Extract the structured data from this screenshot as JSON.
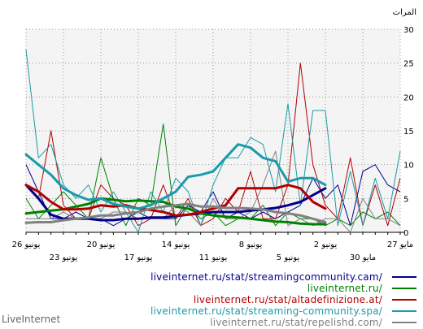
{
  "chart_data": {
    "type": "line",
    "ylabel": "المرات",
    "ylim": [
      0,
      30
    ],
    "yticks": [
      0,
      5,
      10,
      15,
      20,
      25,
      30
    ],
    "grid": true,
    "legend_position": "bottom-right",
    "x": [
      "27 مايو",
      "28 مايو",
      "29 مايو",
      "30 مايو",
      "31 مايو",
      "1 يونيو",
      "2 يونيو",
      "3 يونيو",
      "4 يونيو",
      "5 يونيو",
      "6 يونيو",
      "7 يونيو",
      "8 يونيو",
      "9 يونيو",
      "10 يونيو",
      "11 يونيو",
      "12 يونيو",
      "13 يونيو",
      "14 يونيو",
      "15 يونيو",
      "16 يونيو",
      "17 يونيو",
      "18 يونيو",
      "19 يونيو",
      "20 يونيو",
      "21 يونيو",
      "22 يونيو",
      "23 يونيو",
      "24 يونيو",
      "25 يونيو",
      "26 يونيو"
    ],
    "xtick_labels_upper": [
      {
        "index": 0,
        "label": "27 مايو"
      },
      {
        "index": 6,
        "label": "2 يونيو"
      },
      {
        "index": 12,
        "label": "8 يونيو"
      },
      {
        "index": 18,
        "label": "14 يونيو"
      },
      {
        "index": 24,
        "label": "20 يونيو"
      },
      {
        "index": 30,
        "label": "26 يونيو"
      }
    ],
    "xtick_labels_lower": [
      {
        "index": 3,
        "label": "30 مايو"
      },
      {
        "index": 9,
        "label": "5 يونيو"
      },
      {
        "index": 15,
        "label": "11 يونيو"
      },
      {
        "index": 21,
        "label": "17 يونيو"
      },
      {
        "index": 27,
        "label": "23 يونيو"
      }
    ],
    "series": [
      {
        "name": "liveinternet.ru/stat/streamingcommunity.cam/",
        "color": "#00008b",
        "values": [
          6,
          7,
          10,
          9,
          1,
          7,
          5,
          8,
          4,
          3,
          2,
          3,
          2,
          3,
          2,
          6,
          3,
          4,
          2,
          2,
          2,
          3,
          2,
          1,
          2,
          2,
          3,
          2,
          2,
          6,
          10
        ],
        "trend": [
          null,
          null,
          null,
          null,
          null,
          null,
          6.5,
          5.5,
          4.5,
          4,
          3.6,
          3.4,
          3.2,
          3,
          3,
          3,
          2.8,
          2.6,
          2.4,
          2.2,
          2.2,
          2,
          2,
          1.8,
          1.8,
          2,
          2,
          2,
          2.6,
          5,
          7
        ]
      },
      {
        "name": "liveinternet.ru/",
        "color": "#008000",
        "values": [
          1,
          3,
          2,
          3,
          1,
          2,
          1,
          2,
          2,
          3,
          1,
          4,
          2,
          2,
          1,
          3,
          2,
          4,
          1,
          16,
          4,
          5,
          1,
          5,
          11,
          2,
          4,
          6,
          4,
          2,
          5
        ],
        "trend": [
          null,
          null,
          null,
          null,
          null,
          null,
          1.2,
          1.2,
          1.3,
          1.5,
          1.6,
          1.8,
          2,
          2.2,
          2.3,
          2.5,
          2.8,
          3.5,
          3.8,
          4.5,
          4.6,
          4.7,
          4.6,
          4.8,
          5,
          4.2,
          3.8,
          3.4,
          3.2,
          3,
          2.8
        ]
      },
      {
        "name": "liveinternet.ru/stat/altadefinizione.at/",
        "color": "#b00000",
        "values": [
          8,
          1,
          7,
          1,
          11,
          2,
          4,
          10,
          25,
          7,
          2,
          2,
          9,
          3,
          5,
          2,
          1,
          5,
          2,
          7,
          2,
          1,
          4,
          5,
          7,
          2,
          2,
          4,
          15,
          5,
          7
        ],
        "trend": [
          null,
          null,
          null,
          null,
          null,
          null,
          3.5,
          4.5,
          6.5,
          7,
          6.5,
          6.5,
          6.5,
          6.5,
          4,
          3.5,
          3,
          2.6,
          2.5,
          3,
          3.3,
          3.5,
          4,
          3.8,
          4,
          3.5,
          3.4,
          3.4,
          4.5,
          6,
          7
        ]
      },
      {
        "name": "liveinternet.ru/stat/streaming-community.spa/",
        "color": "#1a9ba8",
        "values": [
          12,
          2,
          8,
          1,
          9,
          1,
          18,
          18,
          4,
          19,
          6,
          13,
          14,
          11,
          11,
          7,
          1,
          6,
          8,
          3,
          6,
          0,
          3,
          6,
          3,
          7,
          5,
          7,
          13,
          11,
          27
        ],
        "trend": [
          null,
          null,
          null,
          null,
          null,
          null,
          7,
          8,
          8,
          7.5,
          10.5,
          11,
          12.5,
          13,
          11,
          9,
          8.5,
          8.2,
          6,
          5,
          4,
          3.5,
          3.8,
          4.2,
          5,
          4.8,
          5.5,
          6.5,
          8.5,
          10,
          11.5
        ]
      },
      {
        "name": "liveinternet.ru/stat/repelishd.com/",
        "color": "#808080",
        "values": [
          1,
          2,
          2,
          5,
          0,
          2,
          2,
          1,
          2,
          1,
          12,
          7,
          3,
          2,
          2,
          5,
          1,
          3,
          4,
          2,
          2,
          2,
          3,
          3,
          2,
          2,
          2,
          3,
          2,
          2,
          2
        ],
        "trend": [
          null,
          null,
          null,
          null,
          null,
          null,
          1.5,
          2,
          2.5,
          2.8,
          3,
          3.4,
          3.5,
          3.6,
          3.6,
          3.8,
          3.8,
          4.2,
          4,
          3.8,
          3.5,
          3,
          2.8,
          2.5,
          2.5,
          2.2,
          2,
          1.8,
          1.5,
          1.5,
          1.4
        ]
      }
    ]
  },
  "watermark": "LiveInternet"
}
